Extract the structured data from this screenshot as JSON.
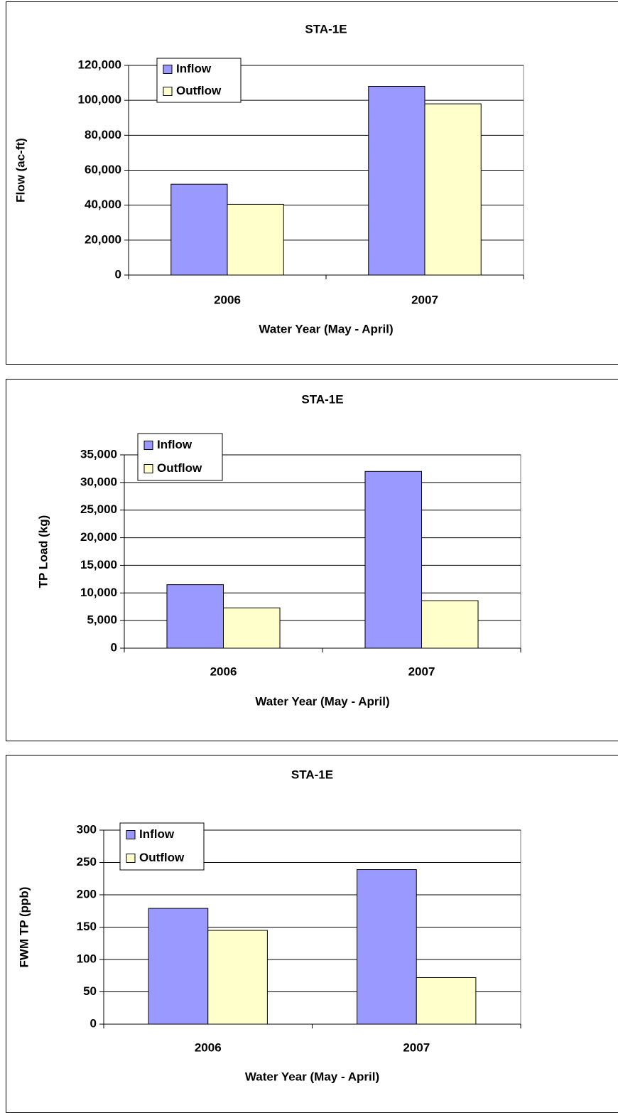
{
  "chart_data": [
    {
      "type": "bar",
      "title": "STA-1E",
      "xlabel": "Water Year (May - April)",
      "ylabel": "Flow (ac-ft)",
      "categories": [
        "2006",
        "2007"
      ],
      "series": [
        {
          "name": "Inflow",
          "color": "#9999ff",
          "values": [
            52000,
            108000
          ]
        },
        {
          "name": "Outflow",
          "color": "#ffffcc",
          "values": [
            40500,
            98000
          ]
        }
      ],
      "ylim": [
        0,
        120000
      ],
      "yticks": [
        0,
        {
          "value": 20000,
          "label": "20,000"
        },
        {
          "value": 40000,
          "label": "40,000"
        },
        {
          "value": 60000,
          "label": "60,000"
        },
        {
          "value": 80000,
          "label": "80,000"
        },
        {
          "value": 100000,
          "label": "100,000"
        },
        {
          "value": 120000,
          "label": "120,000"
        }
      ],
      "grid": true,
      "legend": "upper left"
    },
    {
      "type": "bar",
      "title": "STA-1E",
      "xlabel": "Water Year (May - April)",
      "ylabel": "TP Load (kg)",
      "categories": [
        "2006",
        "2007"
      ],
      "series": [
        {
          "name": "Inflow",
          "color": "#9999ff",
          "values": [
            11500,
            32000
          ]
        },
        {
          "name": "Outflow",
          "color": "#ffffcc",
          "values": [
            7300,
            8600
          ]
        }
      ],
      "ylim": [
        0,
        35000
      ],
      "yticks": [
        0,
        {
          "value": 5000,
          "label": "5,000"
        },
        {
          "value": 10000,
          "label": "10,000"
        },
        {
          "value": 15000,
          "label": "15,000"
        },
        {
          "value": 20000,
          "label": "20,000"
        },
        {
          "value": 25000,
          "label": "25,000"
        },
        {
          "value": 30000,
          "label": "30,000"
        },
        {
          "value": 35000,
          "label": "35,000"
        }
      ],
      "grid": true,
      "legend": "upper left"
    },
    {
      "type": "bar",
      "title": "STA-1E",
      "xlabel": "Water Year (May - April)",
      "ylabel": "FWM TP (ppb)",
      "categories": [
        "2006",
        "2007"
      ],
      "series": [
        {
          "name": "Inflow",
          "color": "#9999ff",
          "values": [
            179,
            239
          ]
        },
        {
          "name": "Outflow",
          "color": "#ffffcc",
          "values": [
            145,
            72
          ]
        }
      ],
      "ylim": [
        0,
        300
      ],
      "yticks": [
        0,
        50,
        100,
        150,
        200,
        250,
        300
      ],
      "grid": true,
      "legend": "upper left"
    }
  ]
}
